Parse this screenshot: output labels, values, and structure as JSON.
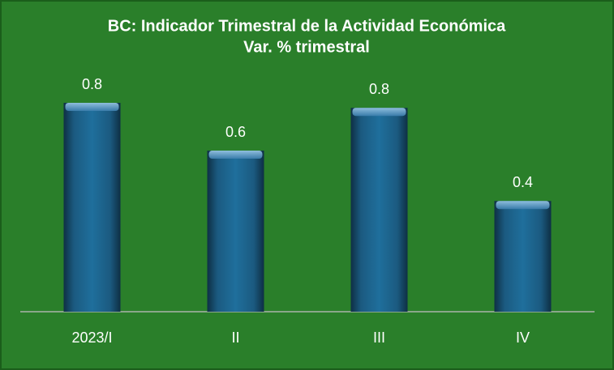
{
  "chart_data": {
    "type": "bar",
    "title": "BC: Indicador Trimestral de la Actividad Económica",
    "subtitle": "Var. % trimestral",
    "categories": [
      "2023/I",
      "II",
      "III",
      "IV"
    ],
    "values": [
      0.83,
      0.64,
      0.81,
      0.44
    ],
    "value_labels": [
      "0.8",
      "0.6",
      "0.8",
      "0.4"
    ],
    "color": "#1d6a96"
  }
}
